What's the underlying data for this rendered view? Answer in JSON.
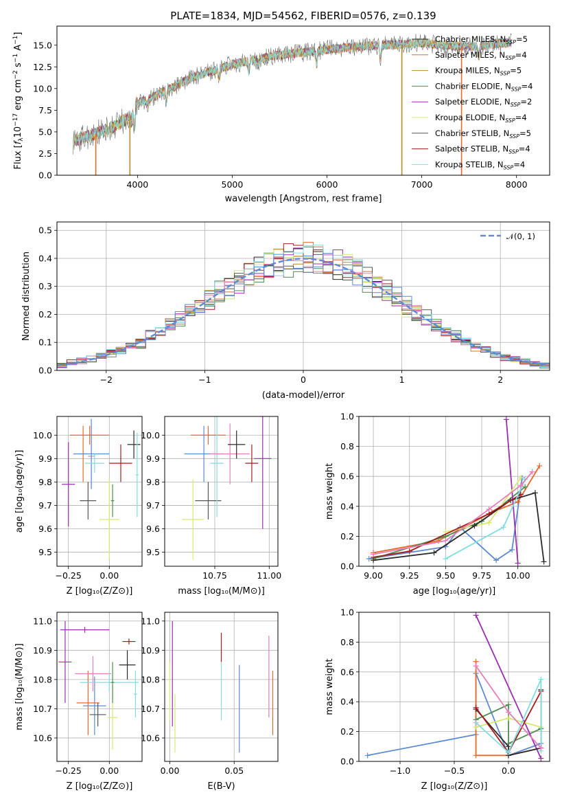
{
  "figure_title": "PLATE=1834, MJD=54562, FIBERID=0576, z=0.139",
  "chart_data": [
    {
      "id": "spectrum",
      "type": "line",
      "title": "PLATE=1834, MJD=54562, FIBERID=0576, z=0.139",
      "xlabel": "wavelength [Angstrom, rest frame]",
      "ylabel": "Flux [f_λ 10^-17 erg cm^-2 s^-1 A^-1]",
      "xlim": [
        3150,
        8350
      ],
      "ylim": [
        0,
        17.2
      ],
      "xticks": [
        "4000",
        "5000",
        "6000",
        "7000",
        "8000"
      ],
      "yticks": [
        "0.0",
        "2.5",
        "5.0",
        "7.5",
        "10.0",
        "12.5",
        "15.0"
      ],
      "continuum": [
        [
          3320,
          3.9
        ],
        [
          3500,
          4.6
        ],
        [
          3700,
          5.3
        ],
        [
          3900,
          6.6
        ],
        [
          4000,
          8.3
        ],
        [
          4200,
          9.2
        ],
        [
          4400,
          10.3
        ],
        [
          4600,
          11.4
        ],
        [
          4800,
          12.0
        ],
        [
          5000,
          12.8
        ],
        [
          5200,
          13.2
        ],
        [
          5400,
          13.7
        ],
        [
          5600,
          14.0
        ],
        [
          5800,
          14.2
        ],
        [
          6000,
          14.5
        ],
        [
          6200,
          14.7
        ],
        [
          6400,
          14.9
        ],
        [
          6600,
          15.0
        ],
        [
          6800,
          15.1
        ],
        [
          7000,
          15.3
        ],
        [
          7200,
          15.0
        ],
        [
          7400,
          14.9
        ],
        [
          7600,
          14.9
        ],
        [
          7800,
          15.2
        ],
        [
          7950,
          15.3
        ]
      ],
      "absorption_lines": [
        [
          3934,
          6.0
        ],
        [
          3969,
          5.8
        ],
        [
          4102,
          8.0
        ],
        [
          4304,
          8.5
        ],
        [
          4861,
          11.0
        ],
        [
          5175,
          12.0
        ],
        [
          5270,
          12.7
        ],
        [
          5890,
          12.8
        ],
        [
          6563,
          13.6
        ],
        [
          7600,
          13.8
        ]
      ],
      "legend": [
        {
          "label": "Chabrier MILES, N",
          "sub": "SSP",
          "tail": "=5",
          "color": "#2a2a2a"
        },
        {
          "label": "Salpeter MILES, N",
          "sub": "SSP",
          "tail": "=4",
          "color": "#e8682a"
        },
        {
          "label": "Kroupa MILES, N",
          "sub": "SSP",
          "tail": "=5",
          "color": "#b38a2c"
        },
        {
          "label": "Chabrier ELODIE, N",
          "sub": "SSP",
          "tail": "=4",
          "color": "#4e8c4e"
        },
        {
          "label": "Salpeter ELODIE, N",
          "sub": "SSP",
          "tail": "=2",
          "color": "#9a2db0"
        },
        {
          "label": "Kroupa ELODIE, N",
          "sub": "SSP",
          "tail": "=4",
          "color": "#d8e870"
        },
        {
          "label": "Chabrier STELIB, N",
          "sub": "SSP",
          "tail": "=5",
          "color": "#555555"
        },
        {
          "label": "Salpeter STELIB, N",
          "sub": "SSP",
          "tail": "=4",
          "color": "#a81b1b"
        },
        {
          "label": "Kroupa STELIB, N",
          "sub": "SSP",
          "tail": "=4",
          "color": "#80dede"
        }
      ],
      "dropouts": [
        {
          "x": 3560,
          "color": "#e8682a"
        },
        {
          "x": 3920,
          "color": "#b38a2c"
        },
        {
          "x": 6790,
          "color": "#b38a2c"
        },
        {
          "x": 7420,
          "color": "#e8682a"
        }
      ]
    },
    {
      "id": "residuals",
      "type": "step",
      "xlabel": "(data-model)/error",
      "ylabel": "Normed distribution",
      "xlim": [
        -2.5,
        2.5
      ],
      "ylim": [
        0,
        0.53
      ],
      "xticks": [
        "−2",
        "−1",
        "0",
        "1",
        "2"
      ],
      "yticks": [
        "0.0",
        "0.1",
        "0.2",
        "0.3",
        "0.4",
        "0.5"
      ],
      "bin_width": 0.1,
      "legend": [
        {
          "label": "𝒩(0, 1)",
          "color": "#5b8bd4"
        }
      ],
      "series_colors": [
        "#2a2a2a",
        "#e8682a",
        "#b38a2c",
        "#4e8c4e",
        "#9a2db0",
        "#d8e870",
        "#555555",
        "#a81b1b",
        "#80dede",
        "#e87db8",
        "#5b8bd4"
      ]
    },
    {
      "id": "age_vs_Z",
      "type": "errorbar",
      "xlabel": "Z [log₁₀(Z/Z⊙)]",
      "ylabel": "age  [log₁₀(age/yr)]",
      "xlim": [
        -0.32,
        0.2
      ],
      "ylim": [
        9.44,
        10.08
      ],
      "xticks": [
        "−0.25",
        "0.00"
      ],
      "yticks": [
        "9.5",
        "9.6",
        "9.7",
        "9.8",
        "9.9",
        "10.0"
      ],
      "points": [
        {
          "x": -0.25,
          "y": 9.79,
          "xerr": 0.04,
          "yerr": 0.18,
          "color": "#9a2db0"
        },
        {
          "x": -0.16,
          "y": 9.92,
          "xerr": 0.02,
          "yerr": 0.12,
          "color": "#e8682a"
        },
        {
          "x": -0.13,
          "y": 9.72,
          "xerr": 0.05,
          "yerr": 0.08,
          "color": "#555555"
        },
        {
          "x": -0.12,
          "y": 10.0,
          "xerr": 0.12,
          "yerr": 0.04,
          "color": "#e8682a"
        },
        {
          "x": -0.11,
          "y": 9.91,
          "xerr": 0.02,
          "yerr": 0.14,
          "color": "#e87db8"
        },
        {
          "x": -0.11,
          "y": 9.92,
          "xerr": 0.11,
          "yerr": 0.15,
          "color": "#5b8bd4"
        },
        {
          "x": -0.09,
          "y": 9.88,
          "xerr": 0.06,
          "yerr": 0.04,
          "color": "#80dede"
        },
        {
          "x": 0.0,
          "y": 9.64,
          "xerr": 0.06,
          "yerr": 0.17,
          "color": "#d8e870"
        },
        {
          "x": 0.02,
          "y": 9.72,
          "xerr": 0.01,
          "yerr": 0.07,
          "color": "#4e8c4e"
        },
        {
          "x": 0.07,
          "y": 9.88,
          "xerr": 0.07,
          "yerr": 0.08,
          "color": "#a81b1b"
        },
        {
          "x": 0.15,
          "y": 9.96,
          "xerr": 0.04,
          "yerr": 0.06,
          "color": "#2a2a2a"
        },
        {
          "x": 0.17,
          "y": 9.83,
          "xerr": 0.01,
          "yerr": 0.18,
          "color": "#80dede"
        }
      ]
    },
    {
      "id": "age_vs_mass",
      "type": "errorbar",
      "xlabel": "mass [log₁₀(M/M⊙)]",
      "ylabel": "",
      "xlim": [
        10.52,
        11.04
      ],
      "ylim": [
        9.44,
        10.08
      ],
      "xticks": [
        "10.75",
        "11.00"
      ],
      "yticks": [
        "9.5",
        "9.6",
        "9.7",
        "9.8",
        "9.9",
        "10.0"
      ],
      "points": [
        {
          "x": 10.65,
          "y": 9.64,
          "xerr": 0.05,
          "yerr": 0.17,
          "color": "#d8e870"
        },
        {
          "x": 10.7,
          "y": 9.92,
          "xerr": 0.09,
          "yerr": 0.12,
          "color": "#5b8bd4"
        },
        {
          "x": 10.72,
          "y": 10.0,
          "xerr": 0.08,
          "yerr": 0.04,
          "color": "#e8682a"
        },
        {
          "x": 10.72,
          "y": 9.72,
          "xerr": 0.06,
          "yerr": 0.08,
          "color": "#555555"
        },
        {
          "x": 10.76,
          "y": 9.88,
          "xerr": 0.03,
          "yerr": 0.23,
          "color": "#80dede"
        },
        {
          "x": 10.82,
          "y": 9.92,
          "xerr": 0.09,
          "yerr": 0.13,
          "color": "#e87db8"
        },
        {
          "x": 10.85,
          "y": 9.96,
          "xerr": 0.04,
          "yerr": 0.06,
          "color": "#2a2a2a"
        },
        {
          "x": 10.92,
          "y": 9.88,
          "xerr": 0.03,
          "yerr": 0.08,
          "color": "#a81b1b"
        },
        {
          "x": 10.97,
          "y": 9.9,
          "xerr": 0.04,
          "yerr": 0.3,
          "color": "#9a2db0"
        }
      ]
    },
    {
      "id": "weight_vs_age",
      "type": "line",
      "xlabel": "age  [log₁₀(age/yr)]",
      "ylabel": "mass weight",
      "xlim": [
        8.9,
        10.22
      ],
      "ylim": [
        0,
        1.0
      ],
      "xticks": [
        "9.00",
        "9.25",
        "9.50",
        "9.75",
        "10.00"
      ],
      "yticks": [
        "0.0",
        "0.2",
        "0.4",
        "0.6",
        "0.8",
        "1.0"
      ],
      "series": [
        {
          "color": "#5b8bd4",
          "points": [
            [
              8.97,
              0.05
            ],
            [
              9.5,
              0.13
            ],
            [
              9.6,
              0.26
            ],
            [
              9.85,
              0.04
            ],
            [
              9.96,
              0.11
            ],
            [
              10.03,
              0.59
            ]
          ]
        },
        {
          "color": "#e8682a",
          "points": [
            [
              9.0,
              0.09
            ],
            [
              9.45,
              0.17
            ],
            [
              9.82,
              0.36
            ],
            [
              10.0,
              0.43
            ],
            [
              10.15,
              0.67
            ]
          ]
        },
        {
          "color": "#4e8c4e",
          "points": [
            [
              9.0,
              0.05
            ],
            [
              9.5,
              0.2
            ],
            [
              9.75,
              0.3
            ],
            [
              10.05,
              0.53
            ]
          ]
        },
        {
          "color": "#9a2db0",
          "points": [
            [
              9.92,
              0.98
            ],
            [
              10.0,
              0.02
            ]
          ]
        },
        {
          "color": "#d8e870",
          "points": [
            [
              9.5,
              0.23
            ],
            [
              9.8,
              0.29
            ],
            [
              10.02,
              0.59
            ]
          ]
        },
        {
          "color": "#2a2a2a",
          "points": [
            [
              9.0,
              0.04
            ],
            [
              9.42,
              0.09
            ],
            [
              9.7,
              0.27
            ],
            [
              9.95,
              0.44
            ],
            [
              10.12,
              0.49
            ],
            [
              10.18,
              0.03
            ]
          ]
        },
        {
          "color": "#a81b1b",
          "points": [
            [
              9.0,
              0.06
            ],
            [
              9.25,
              0.1
            ],
            [
              9.8,
              0.35
            ],
            [
              10.02,
              0.48
            ]
          ]
        },
        {
          "color": "#80dede",
          "points": [
            [
              9.5,
              0.05
            ],
            [
              9.9,
              0.26
            ],
            [
              10.05,
              0.58
            ]
          ]
        },
        {
          "color": "#e87db8",
          "points": [
            [
              9.0,
              0.08
            ],
            [
              9.5,
              0.17
            ],
            [
              9.8,
              0.38
            ],
            [
              10.02,
              0.54
            ],
            [
              10.1,
              0.63
            ]
          ]
        }
      ]
    },
    {
      "id": "mass_vs_Z",
      "type": "errorbar",
      "xlabel": "Z [log₁₀(Z/Z⊙)]",
      "ylabel": "mass [log₁₀(M/M⊙)]",
      "xlim": [
        -0.32,
        0.2
      ],
      "ylim": [
        10.52,
        11.03
      ],
      "xticks": [
        "−0.25",
        "0.00"
      ],
      "yticks": [
        "10.6",
        "10.7",
        "10.8",
        "10.9",
        "11.0"
      ],
      "points": [
        {
          "x": -0.27,
          "y": 10.86,
          "xerr": 0.04,
          "yerr": 0.14,
          "color": "#9a2db0"
        },
        {
          "x": -0.15,
          "y": 10.97,
          "xerr": 0.15,
          "yerr": 0.01,
          "color": "#9a2db0"
        },
        {
          "x": -0.13,
          "y": 10.72,
          "xerr": 0.07,
          "yerr": 0.11,
          "color": "#e8682a"
        },
        {
          "x": -0.09,
          "y": 10.71,
          "xerr": 0.07,
          "yerr": 0.1,
          "color": "#5b8bd4"
        },
        {
          "x": -0.1,
          "y": 10.82,
          "xerr": 0.11,
          "yerr": 0.06,
          "color": "#e87db8"
        },
        {
          "x": -0.07,
          "y": 10.68,
          "xerr": 0.05,
          "yerr": 0.04,
          "color": "#555555"
        },
        {
          "x": 0.0,
          "y": 10.79,
          "xerr": 0.18,
          "yerr": 0.03,
          "color": "#80dede"
        },
        {
          "x": 0.02,
          "y": 10.67,
          "xerr": 0.03,
          "yerr": 0.11,
          "color": "#d8e870"
        },
        {
          "x": 0.02,
          "y": 10.79,
          "xerr": 0.01,
          "yerr": 0.07,
          "color": "#4e8c4e"
        },
        {
          "x": 0.12,
          "y": 10.93,
          "xerr": 0.04,
          "yerr": 0.01,
          "color": "#a81b1b"
        },
        {
          "x": 0.11,
          "y": 10.85,
          "xerr": 0.05,
          "yerr": 0.05,
          "color": "#2a2a2a"
        },
        {
          "x": 0.16,
          "y": 10.75,
          "xerr": 0.01,
          "yerr": 0.08,
          "color": "#80dede"
        }
      ]
    },
    {
      "id": "mass_vs_ebv",
      "type": "errorbar",
      "xlabel": "E(B-V)",
      "ylabel": "",
      "xlim": [
        -0.004,
        0.084
      ],
      "ylim": [
        10.52,
        11.03
      ],
      "xticks": [
        "0.00",
        "0.05"
      ],
      "yticks": [
        "10.6",
        "10.7",
        "10.8",
        "10.9",
        "11.0"
      ],
      "points": [
        {
          "x": 0.0,
          "y": 10.76,
          "xerr": 0,
          "yerr": 0.1,
          "color": "#d8e870"
        },
        {
          "x": 0.002,
          "y": 10.82,
          "xerr": 0,
          "yerr": 0.18,
          "color": "#9a2db0"
        },
        {
          "x": 0.004,
          "y": 10.65,
          "xerr": 0,
          "yerr": 0.1,
          "color": "#d8e870"
        },
        {
          "x": 0.04,
          "y": 10.91,
          "xerr": 0,
          "yerr": 0.05,
          "color": "#a81b1b"
        },
        {
          "x": 0.04,
          "y": 10.76,
          "xerr": 0,
          "yerr": 0.1,
          "color": "#80dede"
        },
        {
          "x": 0.054,
          "y": 10.7,
          "xerr": 0,
          "yerr": 0.15,
          "color": "#5b8bd4"
        },
        {
          "x": 0.077,
          "y": 10.81,
          "xerr": 0,
          "yerr": 0.14,
          "color": "#e87db8"
        },
        {
          "x": 0.08,
          "y": 10.72,
          "xerr": 0,
          "yerr": 0.11,
          "color": "#e8682a"
        }
      ]
    },
    {
      "id": "weight_vs_Z",
      "type": "line",
      "xlabel": "Z [log₁₀(Z/Z⊙)]",
      "ylabel": "mass weight",
      "xlim": [
        -1.38,
        0.38
      ],
      "ylim": [
        0,
        1.0
      ],
      "xticks": [
        "−1.0",
        "−0.5",
        "0.0"
      ],
      "yticks": [
        "0.0",
        "0.2",
        "0.4",
        "0.6",
        "0.8",
        "1.0"
      ],
      "series": [
        {
          "color": "#5b8bd4",
          "points": [
            [
              -1.3,
              0.04
            ],
            [
              -0.3,
              0.18
            ],
            [
              -0.3,
              0.59
            ],
            [
              0.0,
              0.04
            ],
            [
              0.3,
              0.12
            ]
          ]
        },
        {
          "color": "#e8682a",
          "points": [
            [
              -0.3,
              0.67
            ],
            [
              -0.3,
              0.04
            ],
            [
              0.0,
              0.04
            ],
            [
              0.3,
              0.09
            ]
          ]
        },
        {
          "color": "#4e8c4e",
          "points": [
            [
              -0.3,
              0.28
            ],
            [
              0.0,
              0.38
            ],
            [
              0.0,
              0.12
            ],
            [
              0.3,
              0.22
            ]
          ]
        },
        {
          "color": "#9a2db0",
          "points": [
            [
              -0.3,
              0.98
            ],
            [
              0.3,
              0.02
            ]
          ]
        },
        {
          "color": "#d8e870",
          "points": [
            [
              -0.3,
              0.23
            ],
            [
              0.0,
              0.29
            ],
            [
              0.3,
              0.23
            ]
          ]
        },
        {
          "color": "#2a2a2a",
          "points": [
            [
              -0.3,
              0.35
            ],
            [
              0.0,
              0.1
            ],
            [
              0.0,
              0.04
            ],
            [
              0.3,
              0.09
            ],
            [
              0.3,
              0.48
            ]
          ]
        },
        {
          "color": "#a81b1b",
          "points": [
            [
              -0.3,
              0.36
            ],
            [
              0.0,
              0.06
            ],
            [
              0.3,
              0.47
            ]
          ]
        },
        {
          "color": "#80dede",
          "points": [
            [
              -0.3,
              0.26
            ],
            [
              0.0,
              0.06
            ],
            [
              0.3,
              0.55
            ],
            [
              0.3,
              0.07
            ]
          ]
        },
        {
          "color": "#e87db8",
          "points": [
            [
              -0.3,
              0.64
            ],
            [
              0.0,
              0.33
            ],
            [
              0.3,
              0.09
            ]
          ]
        }
      ]
    }
  ]
}
